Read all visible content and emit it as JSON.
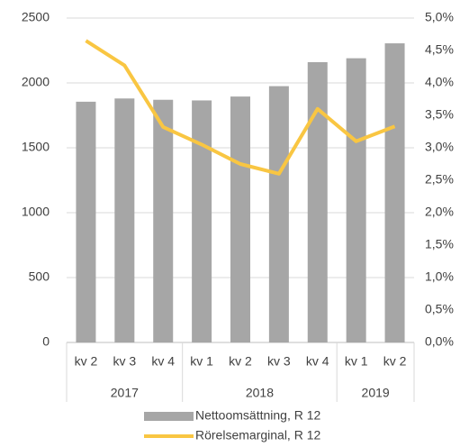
{
  "chart_data": {
    "type": "bar",
    "groups": [
      {
        "name": "2017",
        "categories": [
          "kv 2",
          "kv 3",
          "kv 4"
        ]
      },
      {
        "name": "2018",
        "categories": [
          "kv 1",
          "kv 2",
          "kv 3",
          "kv 4"
        ]
      },
      {
        "name": "2019",
        "categories": [
          "kv 1",
          "kv 2"
        ]
      }
    ],
    "series": [
      {
        "name": "Nettoomsättning, R 12",
        "type": "bar",
        "color": "#a6a6a6",
        "values": [
          1855,
          1880,
          1870,
          1865,
          1895,
          1975,
          2160,
          2190,
          2305
        ]
      },
      {
        "name": "Rörelsemarginal, R 12",
        "type": "line",
        "axis": "y2",
        "color": "#f9c642",
        "values": [
          4.65,
          4.27,
          3.32,
          3.05,
          2.75,
          2.6,
          3.6,
          3.1,
          3.33
        ]
      }
    ],
    "ylim": [
      0,
      2500
    ],
    "yticks": [
      0,
      500,
      1000,
      1500,
      2000,
      2500
    ],
    "y2lim": [
      0,
      5
    ],
    "y2ticks": [
      {
        "value": 0,
        "label": "0,0%"
      },
      {
        "value": 0.5,
        "label": "0,5%"
      },
      {
        "value": 1,
        "label": "1,0%"
      },
      {
        "value": 1.5,
        "label": "1,5%"
      },
      {
        "value": 2,
        "label": "2,0%"
      },
      {
        "value": 2.5,
        "label": "2,5%"
      },
      {
        "value": 3,
        "label": "3,0%"
      },
      {
        "value": 3.5,
        "label": "3,5%"
      },
      {
        "value": 4,
        "label": "4,0%"
      },
      {
        "value": 4.5,
        "label": "4,5%"
      },
      {
        "value": 5,
        "label": "5,0%"
      }
    ],
    "grid": true,
    "legend": "bottom"
  }
}
